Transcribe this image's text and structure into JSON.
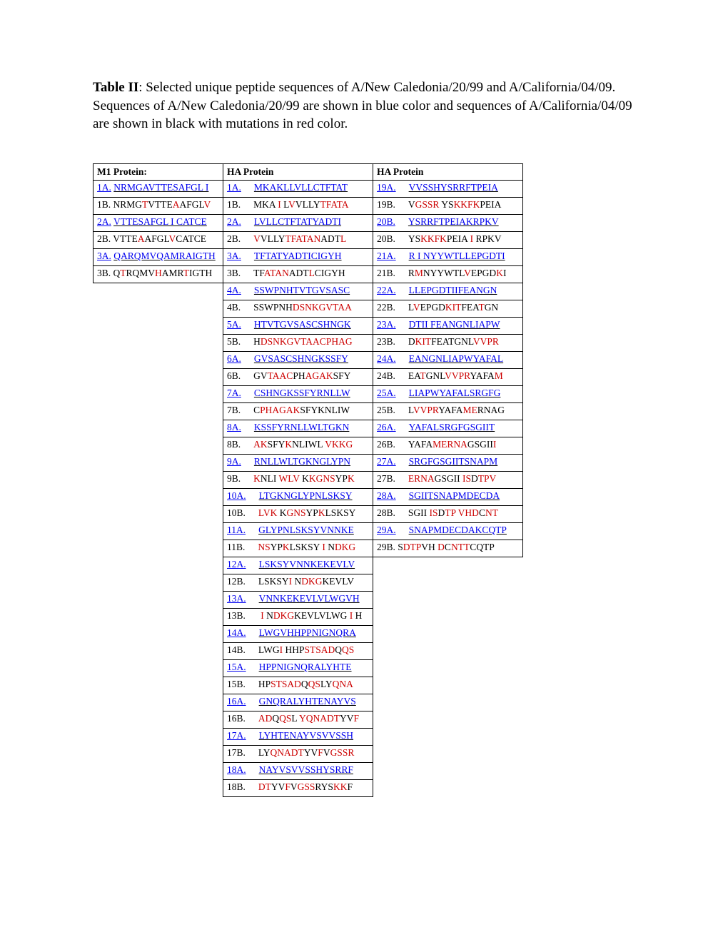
{
  "title": {
    "label": "Table II",
    "desc": ": Selected unique peptide sequences of A/New Caledonia/20/99 and A/California/04/09.",
    "legend": "Sequences of A/New Caledonia/20/99 are shown in blue color and sequences of A/California/04/09 are shown in black with mutations in red color."
  },
  "headers": {
    "col1": "M1 Protein:",
    "col2": "HA Protein",
    "col3": "HA Protein"
  },
  "colors": {
    "blue": "#0000ee",
    "red": "#cc0000",
    "black": "#000000",
    "border": "#000000",
    "bg": "#ffffff"
  },
  "fontsize": {
    "title": 19,
    "table": 13.5
  },
  "col1_rows": [
    {
      "id": "1A.",
      "type": "A",
      "segments": [
        {
          "t": "NRMGAVTTESAFGL I",
          "c": "blue"
        }
      ]
    },
    {
      "id": "1B.",
      "type": "B",
      "segments": [
        {
          "t": "NRMG",
          "c": "black"
        },
        {
          "t": "T",
          "c": "red"
        },
        {
          "t": "VTTE",
          "c": "black"
        },
        {
          "t": "A",
          "c": "red"
        },
        {
          "t": "AFGL",
          "c": "black"
        },
        {
          "t": "V",
          "c": "red"
        }
      ]
    },
    {
      "id": "2A.",
      "type": "A",
      "segments": [
        {
          "t": "VTTESAFGL I CATCE",
          "c": "blue"
        }
      ]
    },
    {
      "id": "2B.",
      "type": "B",
      "segments": [
        {
          "t": "VTTE",
          "c": "black"
        },
        {
          "t": "A",
          "c": "red"
        },
        {
          "t": "AFGL",
          "c": "black"
        },
        {
          "t": "V",
          "c": "red"
        },
        {
          "t": "CATCE",
          "c": "black"
        }
      ]
    },
    {
      "id": "3A.",
      "type": "A",
      "segments": [
        {
          "t": "QARQMVQAMRAIGTH",
          "c": "blue"
        }
      ]
    },
    {
      "id": "3B.",
      "type": "B",
      "segments": [
        {
          "t": "Q",
          "c": "black"
        },
        {
          "t": "T",
          "c": "red"
        },
        {
          "t": "RQMV",
          "c": "black"
        },
        {
          "t": "H",
          "c": "red"
        },
        {
          "t": "AMR",
          "c": "black"
        },
        {
          "t": "T",
          "c": "red"
        },
        {
          "t": "IGTH",
          "c": "black"
        }
      ]
    }
  ],
  "col2_rows": [
    {
      "id": "1A.",
      "type": "A",
      "segments": [
        {
          "t": "MKAKLLVLLCTFTAT",
          "c": "blue"
        }
      ]
    },
    {
      "id": "1B.",
      "type": "B",
      "segments": [
        {
          "t": "MKA",
          "c": "black"
        },
        {
          "t": " I ",
          "c": "red"
        },
        {
          "t": "L",
          "c": "black"
        },
        {
          "t": "V",
          "c": "red"
        },
        {
          "t": "VLLY",
          "c": "black"
        },
        {
          "t": "TFATA",
          "c": "red"
        }
      ]
    },
    {
      "id": "2A.",
      "type": "A",
      "segments": [
        {
          "t": "LVLLCTFTATYADTI",
          "c": "blue"
        }
      ]
    },
    {
      "id": "2B.",
      "type": "B",
      "segments": [
        {
          "t": "V",
          "c": "red"
        },
        {
          "t": "VLLY",
          "c": "black"
        },
        {
          "t": "TFATAN",
          "c": "red"
        },
        {
          "t": "ADT",
          "c": "black"
        },
        {
          "t": "L",
          "c": "red"
        }
      ]
    },
    {
      "id": "3A.",
      "type": "A",
      "segments": [
        {
          "t": "TFTATYADTICIGYH",
          "c": "blue"
        }
      ]
    },
    {
      "id": "3B.",
      "type": "B",
      "segments": [
        {
          "t": "TF",
          "c": "black"
        },
        {
          "t": "ATAN",
          "c": "red"
        },
        {
          "t": "ADT",
          "c": "black"
        },
        {
          "t": "L",
          "c": "red"
        },
        {
          "t": "CIGYH",
          "c": "black"
        }
      ]
    },
    {
      "id": "4A.",
      "type": "A",
      "segments": [
        {
          "t": "SSWPNHTVTGVSASC",
          "c": "blue"
        }
      ]
    },
    {
      "id": "4B.",
      "type": "B",
      "segments": [
        {
          "t": "SSWPNH",
          "c": "black"
        },
        {
          "t": "DSNKGVTAA",
          "c": "red"
        }
      ]
    },
    {
      "id": "5A.",
      "type": "A",
      "segments": [
        {
          "t": "HTVTGVSASCSHNGK",
          "c": "blue"
        }
      ]
    },
    {
      "id": "5B.",
      "type": "B",
      "segments": [
        {
          "t": "H",
          "c": "black"
        },
        {
          "t": "DSNKGVTAACPHAG",
          "c": "red"
        }
      ]
    },
    {
      "id": "6A.",
      "type": "A",
      "segments": [
        {
          "t": "GVSASCSHNGKSSFY",
          "c": "blue"
        }
      ]
    },
    {
      "id": "6B.",
      "type": "B",
      "segments": [
        {
          "t": "GV",
          "c": "black"
        },
        {
          "t": "TAAC",
          "c": "red"
        },
        {
          "t": "PH",
          "c": "black"
        },
        {
          "t": "AGAK",
          "c": "red"
        },
        {
          "t": "SFY",
          "c": "black"
        }
      ]
    },
    {
      "id": "7A.",
      "type": "A",
      "segments": [
        {
          "t": "CSHNGKSSFYRNLLW",
          "c": "blue"
        }
      ]
    },
    {
      "id": "7B.",
      "type": "B",
      "segments": [
        {
          "t": "C",
          "c": "black"
        },
        {
          "t": "PHAGAK",
          "c": "red"
        },
        {
          "t": "SFYKNLIW",
          "c": "black"
        }
      ]
    },
    {
      "id": "8A.",
      "type": "A",
      "segments": [
        {
          "t": "KSSFYRNLLWLTGKN",
          "c": "blue"
        }
      ]
    },
    {
      "id": "8B.",
      "type": "B",
      "segments": [
        {
          "t": "AK",
          "c": "red"
        },
        {
          "t": "SFY",
          "c": "black"
        },
        {
          "t": "K",
          "c": "red"
        },
        {
          "t": "NLIWL",
          "c": "black"
        },
        {
          "t": " VKKG",
          "c": "red"
        }
      ]
    },
    {
      "id": "9A.",
      "type": "A",
      "segments": [
        {
          "t": "RNLLWLTGKNGLYPN",
          "c": "blue"
        }
      ]
    },
    {
      "id": "9B.",
      "type": "B",
      "segments": [
        {
          "t": "K",
          "c": "red"
        },
        {
          "t": "NLI",
          "c": "black"
        },
        {
          "t": " WLV ",
          "c": "red"
        },
        {
          "t": "K",
          "c": "black"
        },
        {
          "t": "KGNS",
          "c": "red"
        },
        {
          "t": "YP",
          "c": "black"
        },
        {
          "t": "K",
          "c": "red"
        }
      ]
    },
    {
      "id": "10A.",
      "type": "A",
      "segments": [
        {
          "t": "LTGKNGLYPNLSKSY",
          "c": "blue"
        }
      ]
    },
    {
      "id": "10B.",
      "type": "B",
      "segments": [
        {
          "t": "LVK ",
          "c": "red"
        },
        {
          "t": "K",
          "c": "black"
        },
        {
          "t": "GNS",
          "c": "red"
        },
        {
          "t": "YP",
          "c": "black"
        },
        {
          "t": "K",
          "c": "red"
        },
        {
          "t": "LSKSY",
          "c": "black"
        }
      ]
    },
    {
      "id": "11A.",
      "type": "A",
      "segments": [
        {
          "t": "GLYPNLSKSYVNNKE",
          "c": "blue"
        }
      ]
    },
    {
      "id": "11B.",
      "type": "B",
      "segments": [
        {
          "t": "NS",
          "c": "red"
        },
        {
          "t": "YP",
          "c": "black"
        },
        {
          "t": "K",
          "c": "red"
        },
        {
          "t": "LSKSY",
          "c": "black"
        },
        {
          "t": " I ",
          "c": "red"
        },
        {
          "t": "N",
          "c": "black"
        },
        {
          "t": "DKG",
          "c": "red"
        }
      ]
    },
    {
      "id": "12A.",
      "type": "A",
      "segments": [
        {
          "t": "LSKSYVNNKEKEVLV",
          "c": "blue"
        }
      ]
    },
    {
      "id": "12B.",
      "type": "B",
      "segments": [
        {
          "t": "LSKSY",
          "c": "black"
        },
        {
          "t": "I ",
          "c": "red"
        },
        {
          "t": "N",
          "c": "black"
        },
        {
          "t": "DKG",
          "c": "red"
        },
        {
          "t": "KEVLV",
          "c": "black"
        }
      ]
    },
    {
      "id": "13A.",
      "type": "A",
      "segments": [
        {
          "t": "VNNKEKEVLVLWGVH",
          "c": "blue"
        }
      ]
    },
    {
      "id": "13B.",
      "type": "B",
      "segments": [
        {
          "t": " I ",
          "c": "red"
        },
        {
          "t": "N",
          "c": "black"
        },
        {
          "t": "DKG",
          "c": "red"
        },
        {
          "t": "KEVLVLWG",
          "c": "black"
        },
        {
          "t": " I ",
          "c": "red"
        },
        {
          "t": "H",
          "c": "black"
        }
      ]
    },
    {
      "id": "14A.",
      "type": "A",
      "segments": [
        {
          "t": "LWGVHHPPNIGNQRA",
          "c": "blue"
        }
      ]
    },
    {
      "id": "14B.",
      "type": "B",
      "segments": [
        {
          "t": "LWG",
          "c": "black"
        },
        {
          "t": "I ",
          "c": "red"
        },
        {
          "t": "HHP",
          "c": "black"
        },
        {
          "t": "STSAD",
          "c": "red"
        },
        {
          "t": "Q",
          "c": "black"
        },
        {
          "t": "QS",
          "c": "red"
        }
      ]
    },
    {
      "id": "15A.",
      "type": "A",
      "segments": [
        {
          "t": "HPPNIGNQRALYHTE",
          "c": "blue"
        }
      ]
    },
    {
      "id": "15B.",
      "type": "B",
      "segments": [
        {
          "t": "HP",
          "c": "black"
        },
        {
          "t": "STSAD",
          "c": "red"
        },
        {
          "t": "Q",
          "c": "black"
        },
        {
          "t": "QS",
          "c": "red"
        },
        {
          "t": "LY",
          "c": "black"
        },
        {
          "t": "QNA",
          "c": "red"
        }
      ]
    },
    {
      "id": "16A.",
      "type": "A",
      "segments": [
        {
          "t": "GNQRALYHTENAYVS",
          "c": "blue"
        }
      ]
    },
    {
      "id": "16B.",
      "type": "B",
      "segments": [
        {
          "t": "AD",
          "c": "red"
        },
        {
          "t": "Q",
          "c": "black"
        },
        {
          "t": "QS",
          "c": "red"
        },
        {
          "t": "L",
          "c": "black"
        },
        {
          "t": " YQNADT",
          "c": "red"
        },
        {
          "t": "YV",
          "c": "black"
        },
        {
          "t": "F",
          "c": "red"
        }
      ]
    },
    {
      "id": "17A.",
      "type": "A",
      "segments": [
        {
          "t": "LYHTENAYVSVVSSH",
          "c": "blue"
        }
      ]
    },
    {
      "id": "17B.",
      "type": "B",
      "segments": [
        {
          "t": "LY",
          "c": "black"
        },
        {
          "t": "QNADT",
          "c": "red"
        },
        {
          "t": "YV",
          "c": "black"
        },
        {
          "t": "F",
          "c": "red"
        },
        {
          "t": "V",
          "c": "black"
        },
        {
          "t": "GSS",
          "c": "red"
        },
        {
          "t": "R",
          "c": "red"
        }
      ]
    },
    {
      "id": "18A.",
      "type": "A",
      "segments": [
        {
          "t": "NAYVSVVSSHYSRRF",
          "c": "blue"
        }
      ]
    },
    {
      "id": "18B.",
      "type": "B",
      "segments": [
        {
          "t": "DT",
          "c": "red"
        },
        {
          "t": "YV",
          "c": "black"
        },
        {
          "t": "F",
          "c": "red"
        },
        {
          "t": "V",
          "c": "black"
        },
        {
          "t": "GSS",
          "c": "red"
        },
        {
          "t": "RYS",
          "c": "black"
        },
        {
          "t": "KK",
          "c": "red"
        },
        {
          "t": "F",
          "c": "black"
        }
      ]
    }
  ],
  "col3_rows": [
    {
      "id": "19A.",
      "type": "A",
      "segments": [
        {
          "t": "VVSSHYSRRFTPEIA",
          "c": "blue"
        }
      ]
    },
    {
      "id": "19B.",
      "type": "B",
      "segments": [
        {
          "t": "V",
          "c": "black"
        },
        {
          "t": "GSSR",
          "c": "red"
        },
        {
          "t": " YS",
          "c": "black"
        },
        {
          "t": "KKFK",
          "c": "red"
        },
        {
          "t": "PEIA",
          "c": "black"
        }
      ]
    },
    {
      "id": "20B.",
      "type": "A",
      "segments": [
        {
          "t": "YSRRFTPEIAKRPKV",
          "c": "blue"
        }
      ]
    },
    {
      "id": "20B.",
      "type": "B",
      "segments": [
        {
          "t": "YS",
          "c": "black"
        },
        {
          "t": "KKFK",
          "c": "red"
        },
        {
          "t": "PEIA",
          "c": "black"
        },
        {
          "t": " I ",
          "c": "red"
        },
        {
          "t": "RPKV",
          "c": "black"
        }
      ]
    },
    {
      "id": "21A.",
      "type": "A",
      "segments": [
        {
          "t": "R I NYYWTLLEPGDTI",
          "c": "blue"
        }
      ]
    },
    {
      "id": "21B.",
      "type": "B",
      "segments": [
        {
          "t": "R",
          "c": "black"
        },
        {
          "t": "M",
          "c": "red"
        },
        {
          "t": "NYYWTL",
          "c": "black"
        },
        {
          "t": "V",
          "c": "red"
        },
        {
          "t": "EPGD",
          "c": "black"
        },
        {
          "t": "K",
          "c": "red"
        },
        {
          "t": "I",
          "c": "black"
        }
      ]
    },
    {
      "id": "22A.",
      "type": "A",
      "segments": [
        {
          "t": "LLEPGDTIIFEANGN",
          "c": "blue"
        }
      ]
    },
    {
      "id": "22B.",
      "type": "B",
      "segments": [
        {
          "t": "L",
          "c": "black"
        },
        {
          "t": "V",
          "c": "red"
        },
        {
          "t": "EPGD",
          "c": "black"
        },
        {
          "t": "KIT",
          "c": "red"
        },
        {
          "t": "FEA",
          "c": "black"
        },
        {
          "t": "T",
          "c": "red"
        },
        {
          "t": "GN",
          "c": "black"
        }
      ]
    },
    {
      "id": "23A.",
      "type": "A",
      "segments": [
        {
          "t": "DTII FEANGNLIAPW",
          "c": "blue"
        }
      ]
    },
    {
      "id": "23B.",
      "type": "B",
      "segments": [
        {
          "t": "D",
          "c": "black"
        },
        {
          "t": "KIT",
          "c": "red"
        },
        {
          "t": "FEATGNL",
          "c": "black"
        },
        {
          "t": "VVPR",
          "c": "red"
        }
      ]
    },
    {
      "id": "24A.",
      "type": "A",
      "segments": [
        {
          "t": "EANGNLIAPWYAFAL",
          "c": "blue"
        }
      ]
    },
    {
      "id": "24B.",
      "type": "B",
      "segments": [
        {
          "t": "EA",
          "c": "black"
        },
        {
          "t": "T",
          "c": "red"
        },
        {
          "t": "GNL",
          "c": "black"
        },
        {
          "t": "VVPR",
          "c": "red"
        },
        {
          "t": "YAFA",
          "c": "black"
        },
        {
          "t": "M",
          "c": "red"
        }
      ]
    },
    {
      "id": "25A.",
      "type": "A",
      "segments": [
        {
          "t": "LIAPWYAFALSRGFG",
          "c": "blue"
        }
      ]
    },
    {
      "id": "25B.",
      "type": "B",
      "segments": [
        {
          "t": "L",
          "c": "black"
        },
        {
          "t": "VVPR",
          "c": "red"
        },
        {
          "t": "YAFA",
          "c": "black"
        },
        {
          "t": "ME",
          "c": "red"
        },
        {
          "t": "RNAG",
          "c": "black"
        }
      ]
    },
    {
      "id": "26A.",
      "type": "A",
      "segments": [
        {
          "t": "YAFALSRGFGSGIIT",
          "c": "blue"
        }
      ]
    },
    {
      "id": "26B.",
      "type": "B",
      "segments": [
        {
          "t": "YAFA",
          "c": "black"
        },
        {
          "t": "MERNA",
          "c": "red"
        },
        {
          "t": "GSGII",
          "c": "black"
        },
        {
          "t": "I",
          "c": "red"
        }
      ]
    },
    {
      "id": "27A.",
      "type": "A",
      "segments": [
        {
          "t": "SRGFGSGIITSNAPM",
          "c": "blue"
        }
      ]
    },
    {
      "id": "27B.",
      "type": "B",
      "segments": [
        {
          "t": "ERNA",
          "c": "red"
        },
        {
          "t": "GSGII",
          "c": "black"
        },
        {
          "t": " IS",
          "c": "red"
        },
        {
          "t": "D",
          "c": "black"
        },
        {
          "t": "TPV",
          "c": "red"
        }
      ]
    },
    {
      "id": "28A.",
      "type": "A",
      "segments": [
        {
          "t": "SGIITSNAPMDECDA",
          "c": "blue"
        }
      ]
    },
    {
      "id": "28B.",
      "type": "B",
      "segments": [
        {
          "t": "SGII",
          "c": "black"
        },
        {
          "t": " IS",
          "c": "red"
        },
        {
          "t": "D",
          "c": "black"
        },
        {
          "t": "TP",
          "c": "red"
        },
        {
          "t": " VHD",
          "c": "red"
        },
        {
          "t": "C",
          "c": "black"
        },
        {
          "t": "NT",
          "c": "red"
        }
      ]
    },
    {
      "id": "29A.",
      "type": "A",
      "segments": [
        {
          "t": "SNAPMDECDAKCQTP",
          "c": "blue"
        }
      ]
    },
    {
      "id": "29B.",
      "type": "B",
      "nogap": true,
      "segments": [
        {
          "t": " S",
          "c": "black"
        },
        {
          "t": "DTP",
          "c": "red"
        },
        {
          "t": "VH",
          "c": "black"
        },
        {
          "t": " D",
          "c": "red"
        },
        {
          "t": "C",
          "c": "black"
        },
        {
          "t": "NTT",
          "c": "red"
        },
        {
          "t": "CQTP",
          "c": "black"
        }
      ]
    }
  ]
}
